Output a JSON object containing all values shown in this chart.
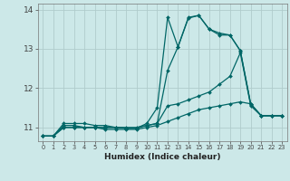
{
  "xlabel": "Humidex (Indice chaleur)",
  "xlim": [
    -0.5,
    23.5
  ],
  "ylim": [
    10.65,
    14.15
  ],
  "yticks": [
    11,
    12,
    13,
    14
  ],
  "xtick_labels": [
    "0",
    "1",
    "2",
    "3",
    "4",
    "5",
    "6",
    "7",
    "8",
    "9",
    "10",
    "11",
    "12",
    "13",
    "14",
    "15",
    "16",
    "17",
    "18",
    "19",
    "20",
    "21",
    "22",
    "23"
  ],
  "bg_color": "#cce8e8",
  "grid_color": "#b0cccc",
  "line_color": "#006666",
  "lines": [
    {
      "x": [
        0,
        1,
        2,
        3,
        4,
        5,
        6,
        7,
        8,
        9,
        10,
        11,
        12,
        13,
        14,
        15,
        16,
        17,
        18,
        19,
        20,
        21,
        22,
        23
      ],
      "y": [
        10.78,
        10.78,
        11.1,
        11.1,
        11.1,
        11.05,
        11.05,
        11.0,
        10.98,
        10.98,
        11.1,
        11.5,
        13.8,
        13.05,
        13.78,
        13.85,
        13.5,
        13.4,
        13.35,
        12.95,
        11.6,
        11.3,
        11.3,
        11.3
      ]
    },
    {
      "x": [
        0,
        1,
        2,
        3,
        4,
        5,
        6,
        7,
        8,
        9,
        10,
        11,
        12,
        13,
        14,
        15,
        16,
        17,
        18,
        19,
        20,
        21,
        22,
        23
      ],
      "y": [
        10.78,
        10.78,
        11.05,
        11.05,
        11.0,
        11.0,
        11.0,
        11.0,
        10.98,
        10.98,
        11.05,
        11.1,
        12.45,
        13.05,
        13.8,
        13.85,
        13.5,
        13.35,
        13.35,
        12.95,
        11.58,
        11.3,
        11.3,
        11.3
      ]
    },
    {
      "x": [
        0,
        1,
        2,
        3,
        4,
        5,
        6,
        7,
        8,
        9,
        10,
        11,
        12,
        13,
        14,
        15,
        16,
        17,
        18,
        19,
        20,
        21,
        22,
        23
      ],
      "y": [
        10.78,
        10.78,
        11.0,
        11.0,
        11.0,
        11.0,
        10.95,
        10.95,
        10.95,
        10.95,
        11.0,
        11.05,
        11.15,
        11.25,
        11.35,
        11.45,
        11.5,
        11.55,
        11.6,
        11.65,
        11.6,
        11.3,
        11.3,
        11.3
      ]
    },
    {
      "x": [
        0,
        1,
        2,
        3,
        4,
        5,
        6,
        7,
        8,
        9,
        10,
        11,
        12,
        13,
        14,
        15,
        16,
        17,
        18,
        19,
        20,
        21,
        22,
        23
      ],
      "y": [
        10.78,
        10.78,
        11.0,
        11.0,
        11.0,
        11.0,
        11.0,
        11.0,
        11.0,
        11.0,
        11.05,
        11.1,
        11.55,
        11.6,
        11.7,
        11.8,
        11.9,
        12.1,
        12.3,
        12.9,
        11.55,
        11.3,
        11.3,
        11.3
      ]
    }
  ]
}
